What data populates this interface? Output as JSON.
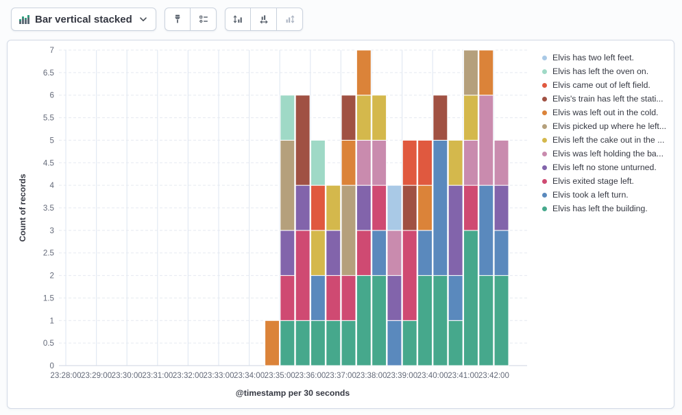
{
  "toolbar": {
    "chart_type_switcher": {
      "label": "Bar vertical stacked"
    },
    "style_buttons": [
      {
        "icon": "paint-brush-icon",
        "disabled": false
      },
      {
        "icon": "legend-list-icon",
        "disabled": false
      }
    ],
    "axis_buttons": [
      {
        "icon": "left-axis-icon",
        "disabled": false
      },
      {
        "icon": "bottom-axis-icon",
        "disabled": false
      },
      {
        "icon": "right-axis-icon",
        "disabled": true
      }
    ]
  },
  "colors": {
    "panel_border": "#d3dae6",
    "grid_horizontal": "#e5e9f0",
    "grid_vertical": "#e2e9f3",
    "axis_line": "#d6dce6",
    "tick_text": "#646a79",
    "title_text": "#343741",
    "icon": "#5d6570",
    "icon_disabled": "#aeb6c4",
    "bar_stroke": "#ffffff"
  },
  "chart_data": {
    "type": "bar",
    "stacked": true,
    "grid": true,
    "legend_position": "right",
    "title": "",
    "xlabel": "@timestamp per 30 seconds",
    "ylabel": "Count of records",
    "ylim": [
      0,
      7
    ],
    "y_tick_labels": [
      "0",
      "0.5",
      "1",
      "1.5",
      "2",
      "2.5",
      "3",
      "3.5",
      "4",
      "4.5",
      "5",
      "5.5",
      "6",
      "6.5",
      "7"
    ],
    "x_tick_labels": [
      "23:28:00",
      "23:29:00",
      "23:30:00",
      "23:31:00",
      "23:32:00",
      "23:33:00",
      "23:34:00",
      "23:35:00",
      "23:36:00",
      "23:37:00",
      "23:38:00",
      "23:39:00",
      "23:40:00",
      "23:41:00",
      "23:42:00"
    ],
    "categories": [
      "23:34:30",
      "23:35:00",
      "23:35:30",
      "23:36:00",
      "23:36:30",
      "23:37:00",
      "23:37:30",
      "23:38:00",
      "23:38:30",
      "23:39:00",
      "23:39:30",
      "23:40:00",
      "23:40:30",
      "23:41:00",
      "23:41:30",
      "23:42:00"
    ],
    "series": [
      {
        "name": "Elvis has two left feet.",
        "color": "#A9C9E6",
        "values": [
          0,
          0,
          0,
          0,
          0,
          0,
          0,
          0,
          1,
          0,
          0,
          0,
          0,
          0,
          0,
          0
        ]
      },
      {
        "name": "Elvis has left the oven on.",
        "color": "#9FD9C6",
        "values": [
          0,
          1,
          0,
          1,
          0,
          0,
          0,
          0,
          0,
          0,
          0,
          0,
          0,
          0,
          0,
          0
        ]
      },
      {
        "name": "Elvis came out of left field.",
        "color": "#E0593F",
        "values": [
          0,
          0,
          0,
          1,
          0,
          0,
          0,
          0,
          0,
          1,
          1,
          0,
          0,
          0,
          0,
          0
        ]
      },
      {
        "name": "Elvis's train has left the stati...",
        "color": "#A05143",
        "values": [
          0,
          0,
          2,
          0,
          0,
          1,
          0,
          0,
          0,
          1,
          0,
          1,
          0,
          0,
          0,
          0
        ]
      },
      {
        "name": "Elvis was left out in the cold.",
        "color": "#DB8339",
        "values": [
          1,
          0,
          0,
          0,
          0,
          1,
          1,
          0,
          0,
          0,
          1,
          0,
          0,
          0,
          1,
          0
        ]
      },
      {
        "name": "Elvis picked up where he left...",
        "color": "#B5A07C",
        "values": [
          0,
          2,
          0,
          0,
          0,
          2,
          0,
          0,
          0,
          0,
          0,
          0,
          0,
          1,
          0,
          0
        ]
      },
      {
        "name": "Elvis left the cake out in the ...",
        "color": "#D4B84C",
        "values": [
          0,
          0,
          0,
          1,
          1,
          0,
          1,
          1,
          0,
          0,
          0,
          0,
          1,
          1,
          0,
          0
        ]
      },
      {
        "name": "Elvis was left holding the ba...",
        "color": "#C98BAE",
        "values": [
          0,
          0,
          0,
          0,
          0,
          0,
          1,
          1,
          1,
          0,
          0,
          0,
          0,
          1,
          2,
          1
        ]
      },
      {
        "name": "Elvis left no stone unturned.",
        "color": "#8264AB",
        "values": [
          0,
          1,
          1,
          0,
          1,
          0,
          1,
          0,
          1,
          0,
          0,
          0,
          2,
          0,
          0,
          1
        ]
      },
      {
        "name": "Elvis exited stage left.",
        "color": "#CF4A72",
        "values": [
          0,
          1,
          2,
          0,
          1,
          1,
          1,
          1,
          0,
          2,
          0,
          0,
          0,
          1,
          0,
          0
        ]
      },
      {
        "name": "Elvis took a left turn.",
        "color": "#5A89BD",
        "values": [
          0,
          0,
          0,
          1,
          0,
          0,
          0,
          1,
          1,
          0,
          1,
          3,
          1,
          0,
          2,
          1
        ]
      },
      {
        "name": "Elvis has left the building.",
        "color": "#46A88C",
        "values": [
          0,
          1,
          1,
          1,
          1,
          1,
          2,
          2,
          0,
          1,
          2,
          2,
          1,
          3,
          2,
          2
        ]
      }
    ]
  }
}
